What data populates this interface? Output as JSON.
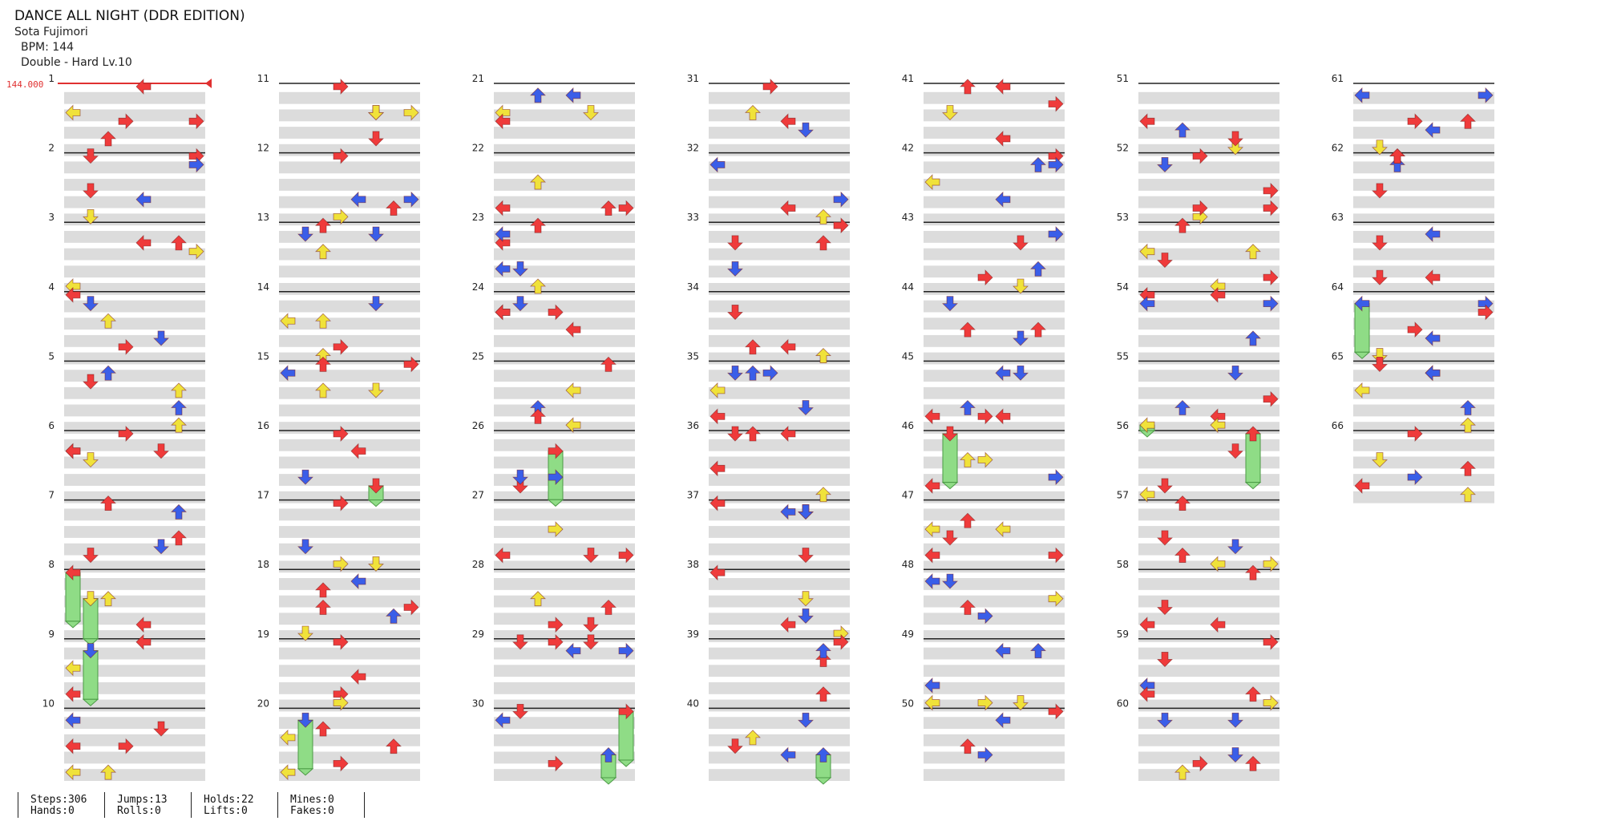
{
  "song": {
    "title": "DANCE ALL NIGHT (DDR EDITION)",
    "artist": "Sota Fujimori",
    "bpm_label": "BPM: 144",
    "difficulty_label": "Double - Hard  Lv.10"
  },
  "bpm_marker": "144.000",
  "measure_numbers": [
    "1",
    "2",
    "3",
    "4",
    "5",
    "6",
    "7",
    "8",
    "9",
    "10",
    "11",
    "12",
    "13",
    "14",
    "15",
    "16",
    "17",
    "18",
    "19",
    "20",
    "21",
    "22",
    "23",
    "24",
    "25",
    "26",
    "27",
    "28",
    "29",
    "30",
    "31",
    "32",
    "33",
    "34",
    "35",
    "36",
    "37",
    "38",
    "39",
    "40",
    "41",
    "42",
    "43",
    "44",
    "45",
    "46",
    "47",
    "48",
    "49",
    "50",
    "51",
    "52",
    "53",
    "54",
    "55",
    "56",
    "57",
    "58",
    "59",
    "60",
    "61",
    "62",
    "63",
    "64",
    "65",
    "66"
  ],
  "colors": {
    "red": "#ef3b3b",
    "blue": "#3a5ee8",
    "yellow": "#f0e23a",
    "hold": "#8fdc86",
    "band": "#dcdcdc",
    "line": "#222222",
    "bpm": "#e03030"
  },
  "arrow_directions": [
    "left",
    "down",
    "up",
    "right"
  ],
  "stats": {
    "steps": "Steps:306",
    "hands": "Hands:0",
    "jumps": "Jumps:13",
    "rolls": "Rolls:0",
    "holds": "Holds:22",
    "lifts": "Lifts:0",
    "mines": "Mines:0",
    "fakes": "Fakes:0"
  }
}
